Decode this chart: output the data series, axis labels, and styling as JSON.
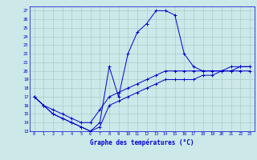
{
  "title": "Graphe des températures (°C)",
  "background_color": "#cce8e8",
  "grid_color": "#aacccc",
  "line_color": "#0000cc",
  "hours": [
    0,
    1,
    2,
    3,
    4,
    5,
    6,
    7,
    8,
    9,
    10,
    11,
    12,
    13,
    14,
    15,
    16,
    17,
    18,
    19,
    20,
    21,
    22,
    23
  ],
  "temp_max": [
    17,
    16,
    15,
    14.5,
    14,
    13.5,
    13,
    14,
    20.5,
    17,
    22,
    24.5,
    25.5,
    27,
    27,
    26.5,
    22,
    20.5,
    20,
    20,
    20,
    20.5,
    20.5,
    20.5
  ],
  "temp_mean": [
    17,
    16,
    15.5,
    15,
    14.5,
    14,
    14,
    15.5,
    17,
    17.5,
    18,
    18.5,
    19,
    19.5,
    20,
    20,
    20,
    20,
    20,
    20,
    20,
    20,
    20.5,
    20.5
  ],
  "temp_min": [
    17,
    16,
    15,
    14.5,
    14,
    13.5,
    13,
    13.5,
    16,
    16.5,
    17,
    17.5,
    18,
    18.5,
    19,
    19,
    19,
    19,
    19.5,
    19.5,
    20,
    20,
    20,
    20
  ],
  "ylim": [
    13,
    27.5
  ],
  "yticks": [
    13,
    14,
    15,
    16,
    17,
    18,
    19,
    20,
    21,
    22,
    23,
    24,
    25,
    26,
    27
  ],
  "xlim": [
    -0.5,
    23.5
  ],
  "xticks": [
    0,
    1,
    2,
    3,
    4,
    5,
    6,
    7,
    8,
    9,
    10,
    11,
    12,
    13,
    14,
    15,
    16,
    17,
    18,
    19,
    20,
    21,
    22,
    23
  ]
}
